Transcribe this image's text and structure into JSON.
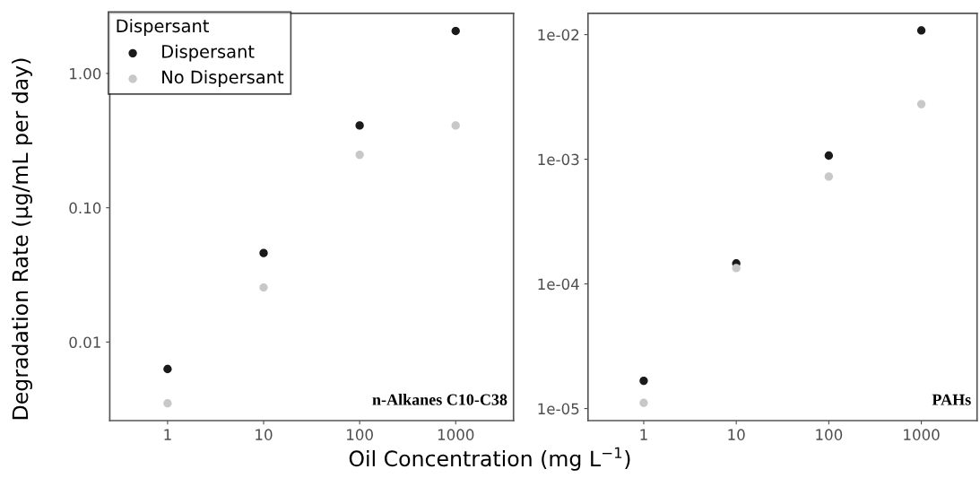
{
  "chart_data": [
    {
      "type": "scatter",
      "xlabel": "Oil Concentration (mg L$^{−1}$)",
      "ylabel": "Degradation Rate (μg/mL per day)",
      "legend_title": "Dispersant",
      "legend": "top left",
      "log": "xy",
      "grid": false,
      "marker": "circle",
      "x": [
        1,
        10,
        100,
        1000
      ],
      "xlim": [
        0.25,
        4000
      ],
      "xticks": [
        1,
        10,
        100,
        1000
      ],
      "ylim": [
        0.0026,
        2.8
      ],
      "yticks": [
        {
          "value": 0.01,
          "label": "0.01"
        },
        {
          "value": 0.1,
          "label": "0.10"
        },
        {
          "value": 1,
          "label": "1.00"
        }
      ],
      "annotations": [
        "n-Alkanes C10-C38"
      ],
      "series": [
        {
          "name": "Dispersant",
          "color": "#1a1a1a",
          "values": [
            0.0063,
            0.046,
            0.41,
            2.07
          ]
        },
        {
          "name": "No Dispersant",
          "color": "#c8c8c8",
          "values": [
            0.0035,
            0.0255,
            0.248,
            0.41
          ]
        }
      ]
    },
    {
      "type": "scatter",
      "log": "xy",
      "grid": false,
      "marker": "circle",
      "x": [
        1,
        10,
        100,
        1000
      ],
      "xlim": [
        0.25,
        4000
      ],
      "xticks": [
        1,
        10,
        100,
        1000
      ],
      "ylim": [
        8e-06,
        0.0148
      ],
      "yticks": [
        {
          "value": 1e-05,
          "label": "1e-05"
        },
        {
          "value": 0.0001,
          "label": "1e-04"
        },
        {
          "value": 0.001,
          "label": "1e-03"
        },
        {
          "value": 0.01,
          "label": "1e-02"
        }
      ],
      "annotations": [
        "PAHs"
      ],
      "series": [
        {
          "color": "#1a1a1a",
          "values": [
            1.67e-05,
            0.000146,
            0.00107,
            0.0108
          ]
        },
        {
          "color": "#c8c8c8",
          "values": [
            1.11e-05,
            0.000134,
            0.000726,
            0.00277
          ]
        }
      ]
    }
  ]
}
